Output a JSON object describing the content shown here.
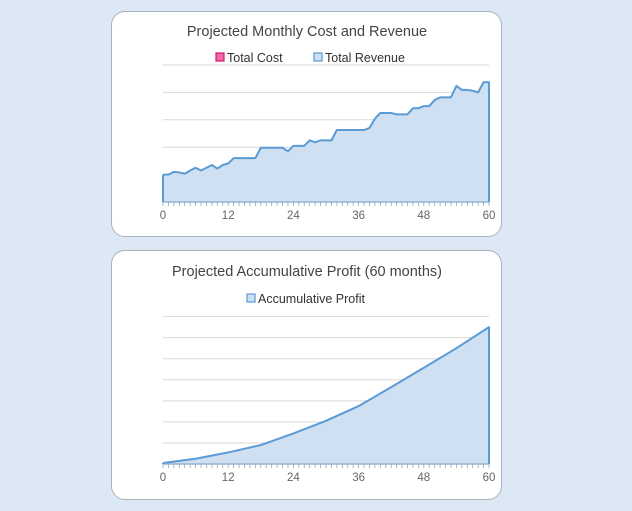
{
  "chart_data": [
    {
      "type": "area",
      "title": "Projected Monthly Cost and Revenue",
      "xlabel": "",
      "ylabel": "",
      "xlim": [
        0,
        60
      ],
      "ylim": [
        0,
        5
      ],
      "x_ticks": [
        "0",
        "12",
        "24",
        "36",
        "48",
        "60"
      ],
      "grid": true,
      "legend_position": "top",
      "colors": {
        "cost": "#e0247a",
        "revenue": "#5b9bd5"
      },
      "series": [
        {
          "name": "Total Cost",
          "values": [
            0.3,
            0.3,
            0.3,
            0.3,
            0.3,
            0.3,
            0.3,
            0.3,
            0.3,
            0.3,
            0.3,
            0.3,
            0.3,
            0.3,
            0.3,
            0.3,
            0.3,
            0.3,
            0.3,
            0.3,
            0.3,
            0.3,
            0.3,
            0.3,
            0.3,
            0.3,
            0.3,
            0.3,
            0.3,
            0.3,
            0.3,
            0.3,
            0.3,
            0.3,
            0.3,
            0.3,
            0.3,
            0.3,
            0.3,
            0.3,
            0.3,
            0.3,
            0.3,
            0.3,
            0.3,
            0.3,
            0.3,
            0.3,
            0.3,
            0.3,
            0.3,
            0.3,
            0.3,
            0.3,
            0.3,
            0.3,
            0.3,
            0.3,
            0.3,
            0.3,
            0.3
          ]
        },
        {
          "name": "Total Revenue",
          "values": [
            1.0,
            1.0,
            1.1,
            1.08,
            1.03,
            1.15,
            1.25,
            1.15,
            1.25,
            1.35,
            1.22,
            1.35,
            1.41,
            1.6,
            1.6,
            1.6,
            1.6,
            1.6,
            1.98,
            1.98,
            1.98,
            1.98,
            1.98,
            1.85,
            2.05,
            2.05,
            2.05,
            2.25,
            2.18,
            2.25,
            2.25,
            2.25,
            2.63,
            2.63,
            2.63,
            2.63,
            2.63,
            2.63,
            2.7,
            3.04,
            3.25,
            3.25,
            3.25,
            3.2,
            3.2,
            3.2,
            3.42,
            3.42,
            3.5,
            3.5,
            3.72,
            3.82,
            3.82,
            3.82,
            4.24,
            4.09,
            4.09,
            4.06,
            4.0,
            4.37,
            4.37
          ]
        }
      ]
    },
    {
      "type": "area",
      "title": "Projected Accumulative Profit (60 months)",
      "xlabel": "",
      "ylabel": "",
      "xlim": [
        0,
        60
      ],
      "ylim": [
        0,
        7
      ],
      "x_ticks": [
        "0",
        "12",
        "24",
        "36",
        "48",
        "60"
      ],
      "grid": true,
      "legend_position": "top",
      "colors": {
        "profit": "#5b9bd5"
      },
      "series": [
        {
          "name": "Accumulative Profit",
          "x": [
            0,
            6,
            12,
            18,
            24,
            30,
            36,
            42,
            48,
            54,
            60
          ],
          "values": [
            0.05,
            0.25,
            0.55,
            0.9,
            1.45,
            2.05,
            2.75,
            3.65,
            4.57,
            5.5,
            6.5
          ]
        }
      ]
    }
  ]
}
